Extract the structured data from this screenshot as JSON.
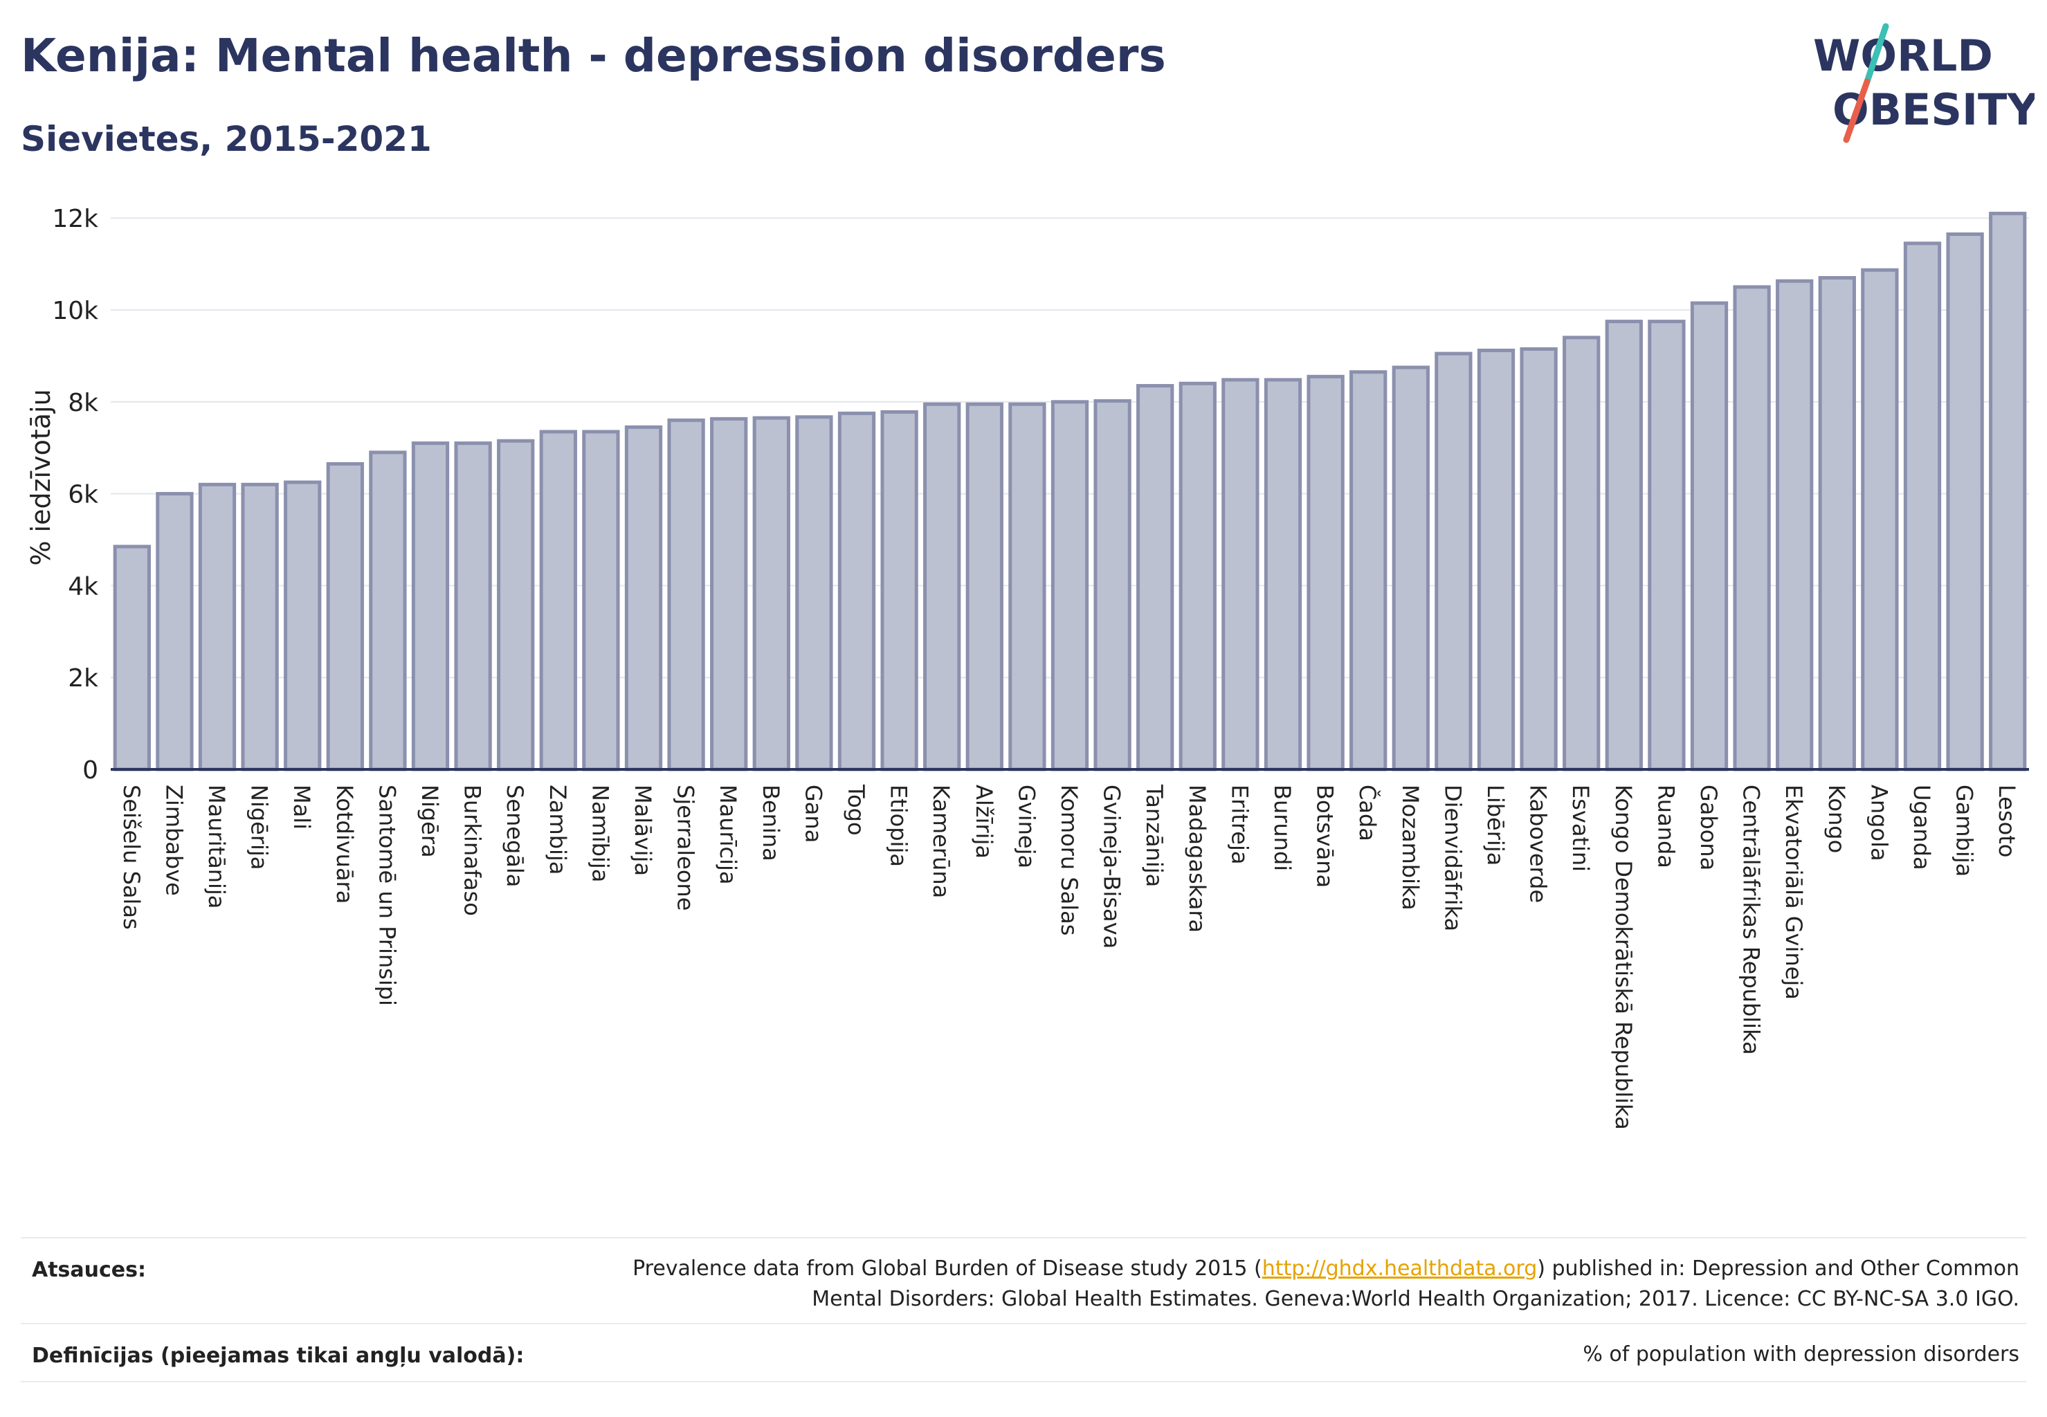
{
  "header": {
    "title": "Kenija: Mental health - depression disorders",
    "subtitle": "Sievietes, 2015-2021"
  },
  "logo": {
    "line1": "WORLD",
    "line2": "OBESITY",
    "color_text": "#2b3560",
    "color_slash_top": "#3cbfb5",
    "color_slash_bottom": "#e8604c"
  },
  "colors": {
    "bar_fill": "#bcc1d1",
    "bar_stroke": "#8a90ad",
    "grid": "#e3e6ee",
    "axis": "#2b3560"
  },
  "chart_data": {
    "type": "bar",
    "ylabel": "% iedzīvotāju",
    "ylim": [
      0,
      12500
    ],
    "yticks": [
      0,
      2000,
      4000,
      6000,
      8000,
      10000,
      12000
    ],
    "ytick_labels": [
      "0",
      "2k",
      "4k",
      "6k",
      "8k",
      "10k",
      "12k"
    ],
    "grid": true,
    "categories": [
      "Seišelu Salas",
      "Zimbabve",
      "Mauritānija",
      "Nigērija",
      "Mali",
      "Kotdivuāra",
      "Santomē un Prinsipi",
      "Nigēra",
      "Burkinafaso",
      "Senegāla",
      "Zambija",
      "Namībija",
      "Malāvija",
      "Sjerraleone",
      "Maurīcija",
      "Benina",
      "Gana",
      "Togo",
      "Etiopija",
      "Kamerūna",
      "Alžīrija",
      "Gvineja",
      "Komoru Salas",
      "Gvineja-Bisava",
      "Tanzānija",
      "Madagaskara",
      "Eritreja",
      "Burundi",
      "Botsvāna",
      "Čada",
      "Mozambika",
      "Dienvidāfrika",
      "Libērija",
      "Kaboverde",
      "Esvatini",
      "Kongo Demokrātiskā Republika",
      "Ruanda",
      "Gabona",
      "Centrālāfrikas Republika",
      "Ekvatoriālā Gvineja",
      "Kongo",
      "Angola",
      "Uganda",
      "Gambija",
      "Lesoto"
    ],
    "values": [
      4850,
      6000,
      6200,
      6200,
      6250,
      6650,
      6900,
      7100,
      7100,
      7150,
      7350,
      7350,
      7450,
      7600,
      7630,
      7650,
      7670,
      7750,
      7780,
      7950,
      7950,
      7950,
      8000,
      8020,
      8350,
      8400,
      8480,
      8480,
      8550,
      8650,
      8750,
      9050,
      9120,
      9150,
      9400,
      9750,
      9750,
      10150,
      10500,
      10630,
      10700,
      10870,
      11450,
      11650,
      12100
    ]
  },
  "footer": {
    "sources_label": "Atsauces:",
    "sources_text_before": "Prevalence data from Global Burden of Disease study 2015 (",
    "sources_link": "http://ghdx.healthdata.org",
    "sources_text_after": ") published in: Depression and Other Common",
    "sources_text_line2": "Mental Disorders: Global Health Estimates. Geneva:World Health Organization; 2017. Licence: CC BY-NC-SA 3.0 IGO.",
    "definitions_label": "Definīcijas (pieejamas tikai angļu valodā):",
    "definitions_text": "% of population with depression disorders"
  }
}
